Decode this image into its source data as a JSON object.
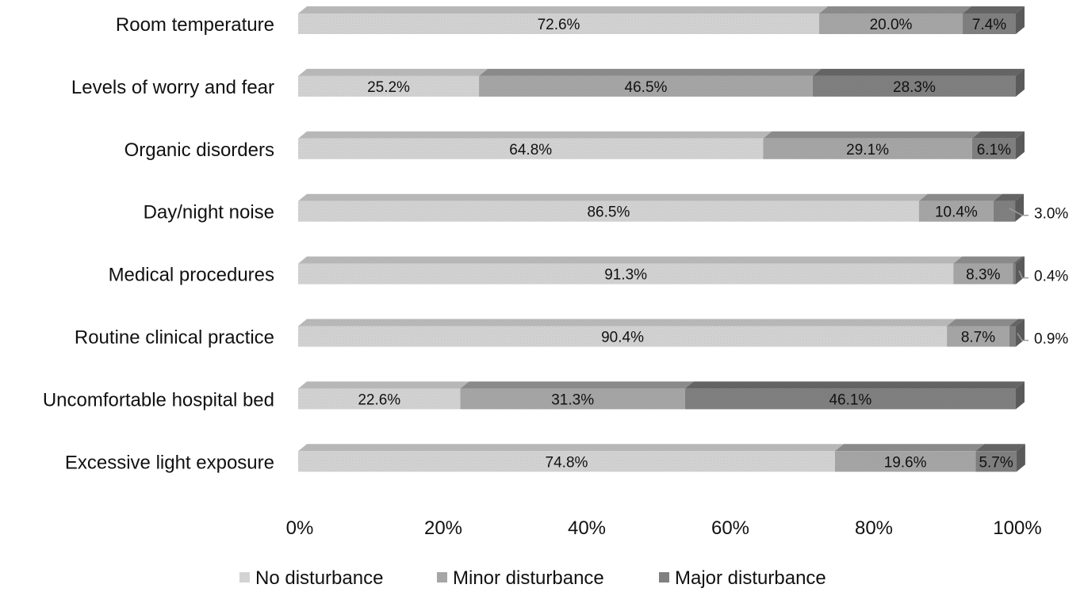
{
  "chart_data": {
    "type": "bar",
    "orientation": "horizontal",
    "stacked": true,
    "percent_stacked": true,
    "style": "3d",
    "categories": [
      "Room temperature",
      "Levels of worry and fear",
      "Organic disorders",
      "Day/night noise",
      "Medical procedures",
      "Routine clinical practice",
      "Uncomfortable hospital bed",
      "Excessive light exposure"
    ],
    "series": [
      {
        "name": "No disturbance",
        "color": "#d3d3d3",
        "values": [
          72.6,
          25.2,
          64.8,
          86.5,
          91.3,
          90.4,
          22.6,
          74.8
        ],
        "labels": [
          "72.6%",
          "25.2%",
          "64.8%",
          "86.5%",
          "91.3%",
          "90.4%",
          "22.6%",
          "74.8%"
        ]
      },
      {
        "name": "Minor disturbance",
        "color": "#a6a6a6",
        "values": [
          20.0,
          46.5,
          29.1,
          10.4,
          8.3,
          8.7,
          31.3,
          19.6
        ],
        "labels": [
          "20.0%",
          "46.5%",
          "29.1%",
          "10.4%",
          "8.3%",
          "8.7%",
          "31.3%",
          "19.6%"
        ]
      },
      {
        "name": "Major disturbance",
        "color": "#808080",
        "values": [
          7.4,
          28.3,
          6.1,
          3.0,
          0.4,
          0.9,
          46.1,
          5.7
        ],
        "labels": [
          "7.4%",
          "28.3%",
          "6.1%",
          "3.0%",
          "0.4%",
          "0.9%",
          "46.1%",
          "5.7%"
        ],
        "outside_labels": [
          false,
          false,
          false,
          true,
          true,
          true,
          false,
          false
        ]
      }
    ],
    "x_ticks": [
      "0%",
      "20%",
      "40%",
      "60%",
      "80%",
      "100%"
    ],
    "xlim": [
      0,
      100
    ],
    "title": "",
    "xlabel": "",
    "ylabel": "",
    "grid": false,
    "legend_position": "bottom"
  }
}
